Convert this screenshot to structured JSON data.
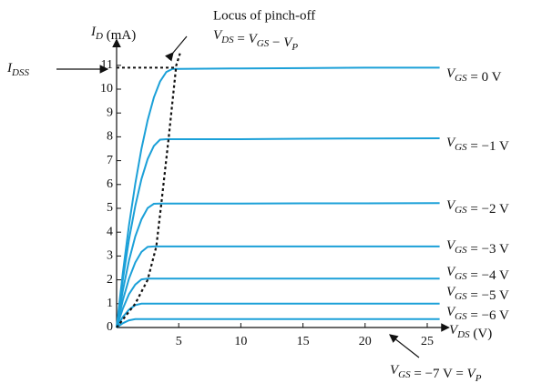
{
  "chart_data": {
    "type": "line",
    "y_label": "ID (mA)",
    "x_label": "VDS (V)",
    "annotation_title": "Locus of pinch-off",
    "annotation_formula": "VDS = VGS − VP",
    "idss_label": "IDSS",
    "bottom_label": "VGS = −7 V = VP",
    "x": [
      0,
      0.5,
      1,
      1.5,
      2,
      2.5,
      3,
      3.5,
      4,
      4.5,
      5,
      10,
      15,
      20,
      26
    ],
    "series": [
      {
        "name": "VGS = 0 V",
        "color": "#1ba0d8",
        "values": [
          0,
          2.28,
          4.29,
          6.03,
          7.5,
          8.7,
          9.65,
          10.32,
          10.72,
          10.85,
          10.85,
          10.87,
          10.88,
          10.9,
          10.9
        ]
      },
      {
        "name": "VGS = −1 V",
        "color": "#1ba0d8",
        "values": [
          0,
          1.99,
          3.69,
          5.1,
          6.23,
          7.07,
          7.62,
          7.88,
          7.9,
          7.9,
          7.9,
          7.9,
          7.92,
          7.93,
          7.94
        ]
      },
      {
        "name": "VGS = −2 V",
        "color": "#1ba0d8",
        "values": [
          0,
          1.54,
          2.81,
          3.82,
          4.54,
          5.01,
          5.19,
          5.2,
          5.2,
          5.2,
          5.2,
          5.2,
          5.21,
          5.21,
          5.22
        ]
      },
      {
        "name": "VGS = −3 V",
        "color": "#1ba0d8",
        "values": [
          0,
          1.14,
          2.05,
          2.73,
          3.17,
          3.38,
          3.4,
          3.4,
          3.4,
          3.4,
          3.4,
          3.4,
          3.4,
          3.4,
          3.4
        ]
      },
      {
        "name": "VGS = −4 V",
        "color": "#1ba0d8",
        "values": [
          0,
          0.79,
          1.4,
          1.8,
          2.02,
          2.05,
          2.05,
          2.05,
          2.05,
          2.05,
          2.05,
          2.05,
          2.05,
          2.05,
          2.05
        ]
      },
      {
        "name": "VGS = −5 V",
        "color": "#1ba0d8",
        "values": [
          0,
          0.44,
          0.75,
          0.94,
          1.0,
          1.0,
          1.0,
          1.0,
          1.0,
          1.0,
          1.0,
          1.0,
          1.0,
          1.0,
          1.0
        ]
      },
      {
        "name": "VGS = −6 V",
        "color": "#1ba0d8",
        "values": [
          0,
          0.18,
          0.3,
          0.35,
          0.35,
          0.35,
          0.35,
          0.35,
          0.35,
          0.35,
          0.35,
          0.35,
          0.35,
          0.35,
          0.35
        ]
      }
    ],
    "locus": {
      "color": "#111111",
      "x": [
        0,
        1.5,
        2.5,
        3.2,
        3.6,
        4.2,
        4.8,
        5.1
      ],
      "values": [
        0,
        1,
        2,
        3.4,
        5.2,
        8,
        11,
        11.5
      ]
    },
    "xlim": [
      0,
      26
    ],
    "ylim": [
      0,
      12
    ],
    "xticks": [
      5,
      10,
      15,
      20,
      25
    ],
    "yticks": [
      0,
      1,
      2,
      3,
      4,
      5,
      6,
      7,
      8,
      9,
      10,
      11
    ]
  }
}
